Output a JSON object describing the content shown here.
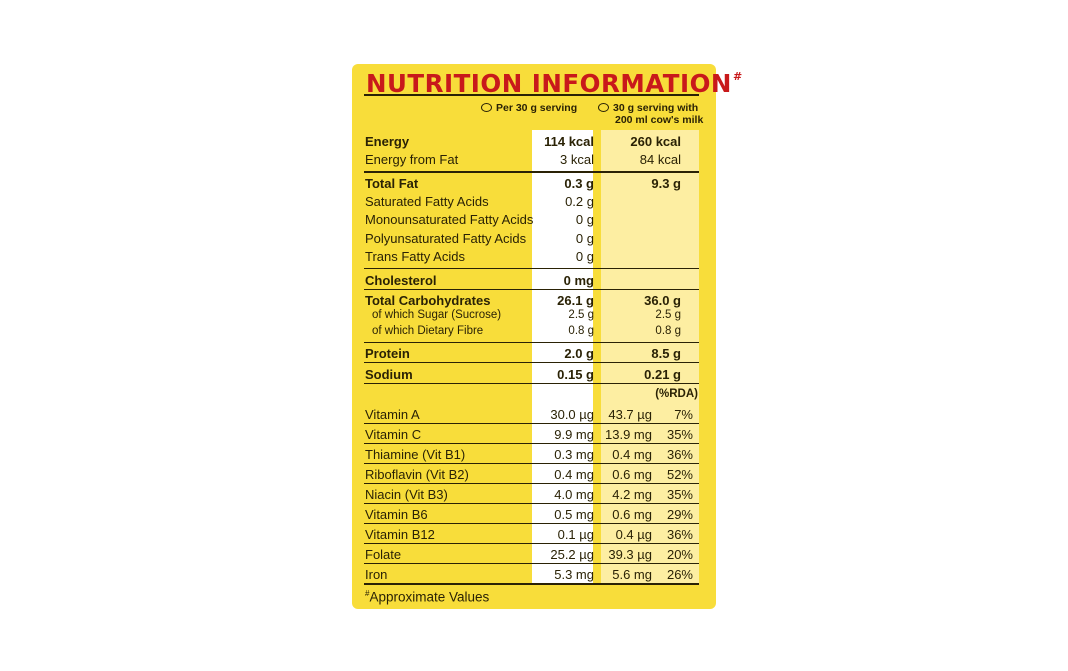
{
  "title": "NUTRITION INFORMATION",
  "title_mark": "#",
  "columns": {
    "per_serving": "Per 30 g serving",
    "with_milk_line1": "30 g serving with",
    "with_milk_line2": "200 ml cow's milk",
    "rda": "(%RDA)"
  },
  "rows": [
    {
      "label": "Energy",
      "v1": "114 kcal",
      "v2": "260 kcal",
      "bold": true
    },
    {
      "label": "Energy from Fat",
      "v1": "3 kcal",
      "v2": "84 kcal"
    },
    {
      "label": "Total Fat",
      "v1": "0.3 g",
      "v2": "9.3 g",
      "bold": true
    },
    {
      "label": "Saturated Fatty Acids",
      "v1": "0.2 g",
      "v2": ""
    },
    {
      "label": "Monounsaturated Fatty Acids",
      "v1": "0 g",
      "v2": ""
    },
    {
      "label": "Polyunsaturated Fatty Acids",
      "v1": "0 g",
      "v2": ""
    },
    {
      "label": "Trans Fatty Acids",
      "v1": "0 g",
      "v2": ""
    },
    {
      "label": "Cholesterol",
      "v1": "0 mg",
      "v2": "",
      "bold": true
    },
    {
      "label": "Total Carbohydrates",
      "v1": "26.1 g",
      "v2": "36.0 g",
      "bold": true
    },
    {
      "label": "of which Sugar (Sucrose)",
      "v1": "2.5 g",
      "v2": "2.5 g"
    },
    {
      "label": "of which Dietary Fibre",
      "v1": "0.8 g",
      "v2": "0.8 g"
    },
    {
      "label": "Protein",
      "v1": "2.0 g",
      "v2": "8.5 g",
      "bold": true
    },
    {
      "label": "Sodium",
      "v1": "0.15 g",
      "v2": "0.21 g",
      "bold": true
    }
  ],
  "vitamins": [
    {
      "label": "Vitamin A",
      "v1": "30.0 µg",
      "v2": "43.7 µg",
      "rda": "7%"
    },
    {
      "label": "Vitamin C",
      "v1": "9.9 mg",
      "v2": "13.9 mg",
      "rda": "35%"
    },
    {
      "label": "Thiamine (Vit B1)",
      "v1": "0.3 mg",
      "v2": "0.4 mg",
      "rda": "36%"
    },
    {
      "label": "Riboflavin (Vit B2)",
      "v1": "0.4 mg",
      "v2": "0.6 mg",
      "rda": "52%"
    },
    {
      "label": "Niacin (Vit B3)",
      "v1": "4.0 mg",
      "v2": "4.2 mg",
      "rda": "35%"
    },
    {
      "label": "Vitamin B6",
      "v1": "0.5 mg",
      "v2": "0.6 mg",
      "rda": "29%"
    },
    {
      "label": "Vitamin B12",
      "v1": "0.1 µg",
      "v2": "0.4 µg",
      "rda": "36%"
    },
    {
      "label": "Folate",
      "v1": "25.2 µg",
      "v2": "39.3 µg",
      "rda": "20%"
    },
    {
      "label": "Iron",
      "v1": "5.3 mg",
      "v2": "5.6 mg",
      "rda": "26%"
    }
  ],
  "footnote_mark": "#",
  "footnote": "Approximate Values",
  "colors": {
    "panel": "#f8dd3a",
    "title": "#c8191b",
    "text": "#2a2205",
    "milk_column": "#fdeea2"
  }
}
